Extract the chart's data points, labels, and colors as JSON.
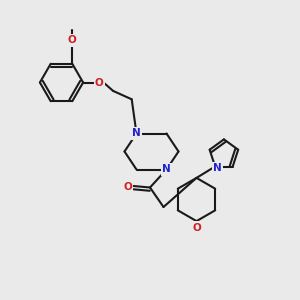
{
  "bg_color": "#eaeaea",
  "bond_color": "#1a1a1a",
  "N_color": "#2222cc",
  "O_color": "#cc2222",
  "lw": 1.5,
  "figsize": [
    3.0,
    3.0
  ],
  "dpi": 100,
  "xlim": [
    0,
    10
  ],
  "ylim": [
    0,
    10
  ]
}
